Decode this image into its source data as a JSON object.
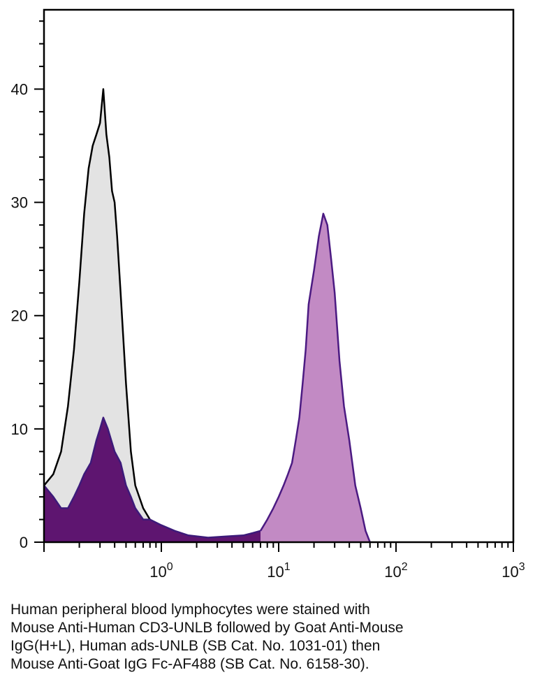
{
  "chart_data": {
    "type": "area",
    "x_scale": "log",
    "xlim": [
      0.1,
      1000
    ],
    "ylim": [
      0,
      47
    ],
    "grid": false,
    "legend": "none",
    "x_tick_labels": [
      {
        "base": "10",
        "exp": "0"
      },
      {
        "base": "10",
        "exp": "1"
      },
      {
        "base": "10",
        "exp": "2"
      },
      {
        "base": "10",
        "exp": "3"
      }
    ],
    "y_tick_labels": [
      "0",
      "10",
      "20",
      "30",
      "40"
    ],
    "series": [
      {
        "style": "filled-outline",
        "fill": "#e3e3e3",
        "stroke": "#000000",
        "x": [
          0.1,
          0.12,
          0.14,
          0.16,
          0.18,
          0.2,
          0.22,
          0.24,
          0.26,
          0.28,
          0.3,
          0.32,
          0.34,
          0.36,
          0.38,
          0.4,
          0.42,
          0.45,
          0.5,
          0.55,
          0.6,
          0.7,
          0.8,
          1.0,
          1.3,
          2.0,
          3.0,
          5.0,
          8.0,
          10.0
        ],
        "y": [
          5,
          6,
          8,
          12,
          17,
          23,
          29,
          33,
          35,
          36,
          37,
          40,
          36,
          34,
          31,
          30,
          27,
          22,
          14,
          8,
          5,
          3,
          2,
          1,
          0.5,
          0.3,
          0.2,
          0.1,
          0,
          0
        ]
      },
      {
        "style": "filled-outline",
        "fill": "#5e1570",
        "stroke": "#3d1a7a",
        "x": [
          0.1,
          0.12,
          0.14,
          0.16,
          0.18,
          0.2,
          0.22,
          0.25,
          0.28,
          0.3,
          0.32,
          0.35,
          0.4,
          0.45,
          0.5,
          0.55,
          0.6,
          0.7,
          0.8,
          1.0,
          1.3,
          1.7,
          2.5,
          3.5,
          5.0,
          6.0,
          7.0
        ],
        "y": [
          5,
          4,
          3,
          3,
          4,
          5,
          6,
          7,
          9,
          10,
          11,
          10,
          8,
          7,
          5,
          4,
          3,
          2,
          2,
          1.5,
          1,
          0.6,
          0.4,
          0.5,
          0.6,
          0.8,
          1
        ]
      },
      {
        "style": "filled-outline",
        "fill": "#c28ac4",
        "stroke": "#4b1a82",
        "x": [
          7.0,
          8.0,
          9.0,
          10.0,
          11.0,
          12.0,
          13.0,
          14.0,
          15.0,
          16.0,
          17.0,
          18.0,
          20.0,
          22.0,
          24.0,
          26.0,
          28.0,
          30.0,
          33.0,
          36.0,
          40.0,
          45.0,
          50.0,
          55.0,
          60.0
        ],
        "y": [
          1,
          2,
          3,
          4,
          5,
          6,
          7,
          9,
          11,
          14,
          17,
          21,
          24,
          27,
          29,
          28,
          25,
          22,
          16,
          12,
          9,
          5,
          3,
          1,
          0
        ]
      }
    ]
  },
  "caption": {
    "lines": [
      "Human peripheral blood lymphocytes were stained with",
      "Mouse Anti-Human CD3-UNLB followed by Goat Anti-Mouse",
      "IgG(H+L), Human ads-UNLB (SB Cat. No. 1031-01) then",
      "Mouse Anti-Goat IgG Fc-AF488 (SB Cat. No. 6158-30)."
    ]
  }
}
